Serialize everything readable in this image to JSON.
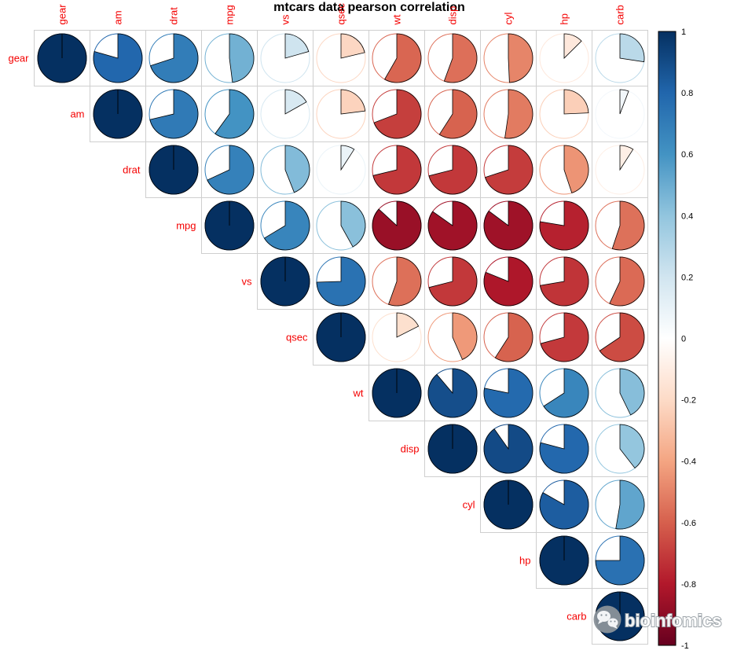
{
  "chart_data": {
    "type": "heatmap",
    "subtype": "correlation-pie-matrix-upper-triangle",
    "title": "mtcars data pearson correlation",
    "variables": [
      "gear",
      "am",
      "drat",
      "mpg",
      "vs",
      "qsec",
      "wt",
      "disp",
      "cyl",
      "hp",
      "carb"
    ],
    "matrix_upper_rows": [
      [
        1,
        0.794,
        0.7,
        0.48,
        0.206,
        -0.213,
        -0.583,
        -0.556,
        -0.493,
        -0.126,
        0.274
      ],
      [
        1,
        0.713,
        0.6,
        0.168,
        -0.23,
        -0.692,
        -0.591,
        -0.523,
        -0.243,
        0.058
      ],
      [
        1,
        0.681,
        0.44,
        0.091,
        -0.712,
        -0.71,
        -0.7,
        -0.449,
        -0.091
      ],
      [
        1,
        0.664,
        0.419,
        -0.868,
        -0.848,
        -0.852,
        -0.776,
        -0.551
      ],
      [
        1,
        0.745,
        -0.555,
        -0.71,
        -0.811,
        -0.723,
        -0.57
      ],
      [
        1,
        -0.175,
        -0.434,
        -0.591,
        -0.708,
        -0.656
      ],
      [
        1,
        0.888,
        0.782,
        0.659,
        0.428
      ],
      [
        1,
        0.902,
        0.791,
        0.395
      ],
      [
        1,
        0.832,
        0.527
      ],
      [
        1,
        0.75
      ],
      [
        1
      ]
    ],
    "palette_neg_to_pos": [
      "#67001F",
      "#B2182B",
      "#D6604D",
      "#F4A582",
      "#FDDBC7",
      "#FFFFFF",
      "#D1E5F0",
      "#92C5DE",
      "#4393C3",
      "#2166AC",
      "#053061"
    ],
    "label_color": "#F40000",
    "grid_color": "#cfcfcf",
    "title_color": "#000000",
    "colorbar": {
      "position": "right",
      "range": [
        -1,
        1
      ],
      "ticks": [
        "1",
        "0.8",
        "0.6",
        "0.4",
        "0.2",
        "0",
        "-0.2",
        "-0.4",
        "-0.6",
        "-0.8",
        "-1"
      ],
      "tick_color": "#000000"
    }
  },
  "watermark": {
    "label": "bioinfomics",
    "icon": "wechat-icon",
    "circle_color": "#8a9299",
    "text_color": "#ffffff",
    "outline_color": "#98a0a6"
  }
}
